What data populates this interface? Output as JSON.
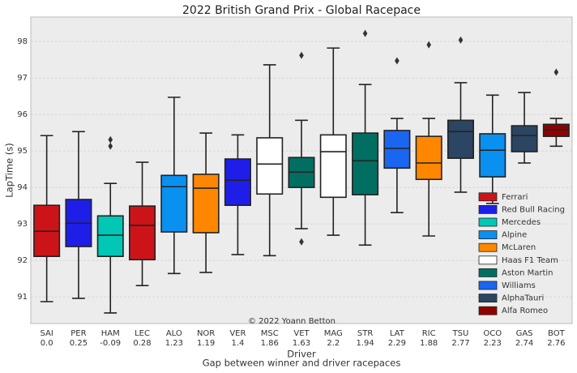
{
  "chart_data": {
    "type": "box",
    "title": "2022 British Grand Prix - Global Racepace",
    "ylabel": "LapTime (s)",
    "xlabel": "Driver",
    "xlabel2": "Gap between winner and driver racepaces",
    "annotation": "© 2022 Yoann Betton",
    "ylim": [
      90.27,
      98.67
    ],
    "yticks": [
      91,
      92,
      93,
      94,
      95,
      96,
      97,
      98
    ],
    "grid": true,
    "legend": "lower right",
    "categories": [
      "SAI",
      "PER",
      "HAM",
      "LEC",
      "ALO",
      "NOR",
      "VER",
      "MSC",
      "VET",
      "MAG",
      "STR",
      "LAT",
      "RIC",
      "TSU",
      "OCO",
      "GAS",
      "BOT"
    ],
    "sublabels": [
      "0.0",
      "0.25",
      "-0.09",
      "0.28",
      "1.23",
      "1.19",
      "1.4",
      "1.86",
      "1.63",
      "2.2",
      "1.94",
      "2.29",
      "1.88",
      "2.77",
      "2.23",
      "2.74",
      "2.76"
    ],
    "series": [
      {
        "name": "Ferrari",
        "color": "#cc1418"
      },
      {
        "name": "Red Bull Racing",
        "color": "#1e1ee8"
      },
      {
        "name": "Mercedes",
        "color": "#00c8b4"
      },
      {
        "name": "Alpine",
        "color": "#0a90f0"
      },
      {
        "name": "McLaren",
        "color": "#ff8700"
      },
      {
        "name": "Haas F1 Team",
        "color": "#ffffff"
      },
      {
        "name": "Aston Martin",
        "color": "#006f62"
      },
      {
        "name": "Williams",
        "color": "#1a66f0"
      },
      {
        "name": "AlphaTauri",
        "color": "#2b4562"
      },
      {
        "name": "Alfa Romeo",
        "color": "#900000"
      }
    ],
    "boxes": [
      {
        "series": 0,
        "low": 90.87,
        "q1": 92.11,
        "median": 92.8,
        "q3": 93.51,
        "high": 95.42,
        "outliers": []
      },
      {
        "series": 1,
        "low": 90.96,
        "q1": 92.38,
        "median": 93.02,
        "q3": 93.67,
        "high": 95.53,
        "outliers": []
      },
      {
        "series": 2,
        "low": 90.56,
        "q1": 92.11,
        "median": 92.69,
        "q3": 93.22,
        "high": 94.11,
        "outliers": [
          95.31,
          95.13
        ]
      },
      {
        "series": 0,
        "low": 91.31,
        "q1": 92.02,
        "median": 92.96,
        "q3": 93.49,
        "high": 94.69,
        "outliers": []
      },
      {
        "series": 3,
        "low": 91.64,
        "q1": 92.78,
        "median": 94.02,
        "q3": 94.33,
        "high": 96.47,
        "outliers": []
      },
      {
        "series": 4,
        "low": 91.67,
        "q1": 92.76,
        "median": 93.98,
        "q3": 94.36,
        "high": 95.49,
        "outliers": []
      },
      {
        "series": 1,
        "low": 92.16,
        "q1": 93.51,
        "median": 94.2,
        "q3": 94.78,
        "high": 95.44,
        "outliers": []
      },
      {
        "series": 5,
        "low": 92.13,
        "q1": 93.82,
        "median": 94.64,
        "q3": 95.36,
        "high": 97.36,
        "outliers": []
      },
      {
        "series": 6,
        "low": 92.87,
        "q1": 94.0,
        "median": 94.42,
        "q3": 94.82,
        "high": 95.84,
        "outliers": [
          97.62,
          92.51
        ]
      },
      {
        "series": 5,
        "low": 92.69,
        "q1": 93.73,
        "median": 94.98,
        "q3": 95.44,
        "high": 97.82,
        "outliers": []
      },
      {
        "series": 6,
        "low": 92.42,
        "q1": 93.8,
        "median": 94.73,
        "q3": 95.49,
        "high": 96.82,
        "outliers": [
          98.22
        ]
      },
      {
        "series": 7,
        "low": 93.31,
        "q1": 94.53,
        "median": 95.07,
        "q3": 95.56,
        "high": 95.89,
        "outliers": [
          97.47
        ]
      },
      {
        "series": 4,
        "low": 92.67,
        "q1": 94.22,
        "median": 94.67,
        "q3": 95.4,
        "high": 95.89,
        "outliers": [
          97.91
        ]
      },
      {
        "series": 8,
        "low": 93.87,
        "q1": 94.8,
        "median": 95.53,
        "q3": 95.84,
        "high": 96.87,
        "outliers": [
          98.04
        ]
      },
      {
        "series": 3,
        "low": 93.56,
        "q1": 94.29,
        "median": 95.02,
        "q3": 95.47,
        "high": 96.53,
        "outliers": []
      },
      {
        "series": 8,
        "low": 94.67,
        "q1": 94.98,
        "median": 95.42,
        "q3": 95.69,
        "high": 96.6,
        "outliers": []
      },
      {
        "series": 9,
        "low": 95.13,
        "q1": 95.4,
        "median": 95.58,
        "q3": 95.73,
        "high": 95.89,
        "outliers": [
          97.16
        ]
      }
    ]
  }
}
